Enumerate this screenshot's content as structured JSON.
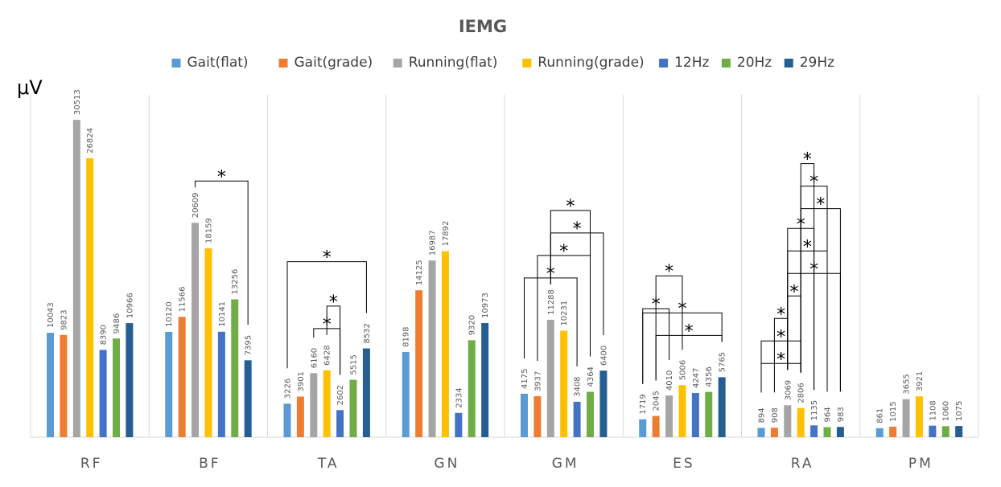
{
  "chart_data": {
    "type": "bar",
    "title": "IEMG",
    "ylabel": "μV",
    "xlabel": "",
    "ylim": [
      0,
      34000
    ],
    "categories": [
      "RF",
      "BF",
      "TA",
      "GN",
      "GM",
      "ES",
      "RA",
      "PM"
    ],
    "series": [
      {
        "name": "Gait(flat)",
        "color": "#5B9BD5",
        "values": [
          10043,
          10120,
          3226,
          8198,
          4175,
          1719,
          894,
          861
        ]
      },
      {
        "name": "Gait(grade)",
        "color": "#ED7D31",
        "values": [
          9823,
          11566,
          3901,
          14125,
          3937,
          2045,
          908,
          1015
        ]
      },
      {
        "name": "Running(flat)",
        "color": "#A5A5A5",
        "values": [
          30513,
          20609,
          6160,
          16987,
          11288,
          4010,
          3069,
          3655
        ]
      },
      {
        "name": "Running(grade)",
        "color": "#FFC000",
        "values": [
          26824,
          18159,
          6428,
          17892,
          10231,
          5006,
          2806,
          3921
        ]
      },
      {
        "name": "12Hz",
        "color": "#4472C4",
        "values": [
          8390,
          10141,
          2602,
          2334,
          3408,
          4247,
          1135,
          1108
        ]
      },
      {
        "name": "20Hz",
        "color": "#70AD47",
        "values": [
          9486,
          13256,
          5515,
          9320,
          4364,
          4356,
          964,
          1060
        ]
      },
      {
        "name": "29Hz",
        "color": "#255E91",
        "values": [
          10966,
          7395,
          8532,
          10973,
          6400,
          5765,
          983,
          1075
        ]
      }
    ],
    "legend_position": "top",
    "grid": false,
    "significance_marker": "*",
    "significance_brackets": [
      {
        "category": "BF",
        "from": "Running(flat)",
        "to": "29Hz"
      },
      {
        "category": "TA",
        "from": "Running(flat)",
        "to": "12Hz"
      },
      {
        "category": "TA",
        "from": "Running(grade)",
        "to": "12Hz"
      },
      {
        "category": "TA",
        "from": "Gait(flat)",
        "to": "29Hz"
      },
      {
        "category": "GM",
        "from": "Gait(flat)",
        "to": "12Hz"
      },
      {
        "category": "GM",
        "from": "Gait(grade)",
        "to": "20Hz"
      },
      {
        "category": "GM",
        "from": "Running(flat)",
        "to": "29Hz"
      },
      {
        "category": "GM",
        "from": "Running(flat)",
        "to": "20Hz"
      },
      {
        "category": "ES",
        "from": "Gait(grade)",
        "to": "29Hz"
      },
      {
        "category": "ES",
        "from": "Gait(flat)",
        "to": "29Hz"
      },
      {
        "category": "ES",
        "from": "Gait(flat)",
        "to": "Running(flat)"
      },
      {
        "category": "ES",
        "from": "Gait(grade)",
        "to": "Running(grade)"
      },
      {
        "category": "RA",
        "from": "Gait(flat)",
        "to": "Running(grade)"
      },
      {
        "category": "RA",
        "from": "Gait(flat)",
        "to": "Running(grade)"
      },
      {
        "category": "RA",
        "from": "Gait(grade)",
        "to": "Running(flat)"
      },
      {
        "category": "RA",
        "from": "Running(flat)",
        "to": "Running(grade)"
      },
      {
        "category": "RA",
        "from": "Running(flat)",
        "to": "29Hz"
      },
      {
        "category": "RA",
        "from": "Running(flat)",
        "to": "20Hz"
      },
      {
        "category": "RA",
        "from": "Running(flat)",
        "to": "12Hz"
      },
      {
        "category": "RA",
        "from": "Running(grade)",
        "to": "29Hz"
      },
      {
        "category": "RA",
        "from": "Running(grade)",
        "to": "20Hz"
      },
      {
        "category": "RA",
        "from": "Running(grade)",
        "to": "12Hz"
      }
    ]
  }
}
